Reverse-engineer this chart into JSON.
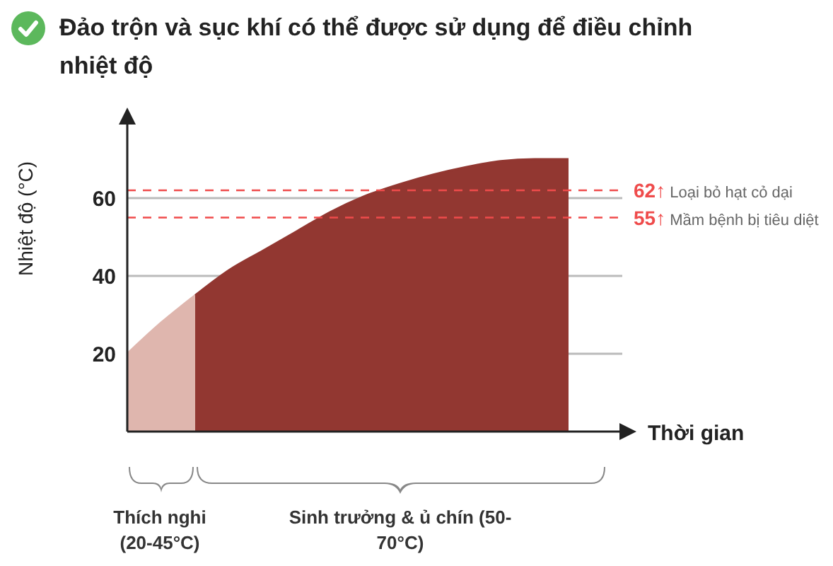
{
  "chart_data": {
    "type": "area",
    "title": "Đảo trộn và sục khí có thể được sử dụng để điều chỉnh nhiệt độ",
    "xlabel": "Thời gian",
    "ylabel": "Nhiệt độ (°C)",
    "categories": [
      null,
      null,
      null,
      null,
      null,
      null,
      null,
      null,
      null,
      null,
      null,
      null,
      null,
      null
    ],
    "series": [
      {
        "color": "#dfb6ae",
        "values": [
          20,
          28,
          35,
          null,
          null,
          null,
          null,
          null,
          null,
          null,
          null,
          null,
          null,
          null
        ]
      },
      {
        "color": "#923731",
        "values": [
          null,
          null,
          35,
          41.5,
          46.5,
          51.5,
          56.5,
          60.5,
          63.5,
          66,
          68,
          69.5,
          70,
          70
        ]
      }
    ],
    "ylim": [
      0,
      80
    ],
    "yticks": [
      20,
      40,
      60
    ],
    "grid": "y",
    "tick_labels": "y",
    "ref_lines": [
      {
        "axis": "y",
        "value": 62,
        "label": "62↑ Loại bỏ hạt cỏ dại",
        "color": "#ef4b4b",
        "line_style": "dashed"
      },
      {
        "axis": "y",
        "value": 55,
        "label": "55↑ Mầm bệnh bị tiêu diệt",
        "color": "#ef4b4b",
        "line_style": "dashed"
      }
    ],
    "annotations": [
      "Thích nghi (20-45°C)",
      "Sinh trưởng & ủ chín (50-70°C)"
    ]
  }
}
